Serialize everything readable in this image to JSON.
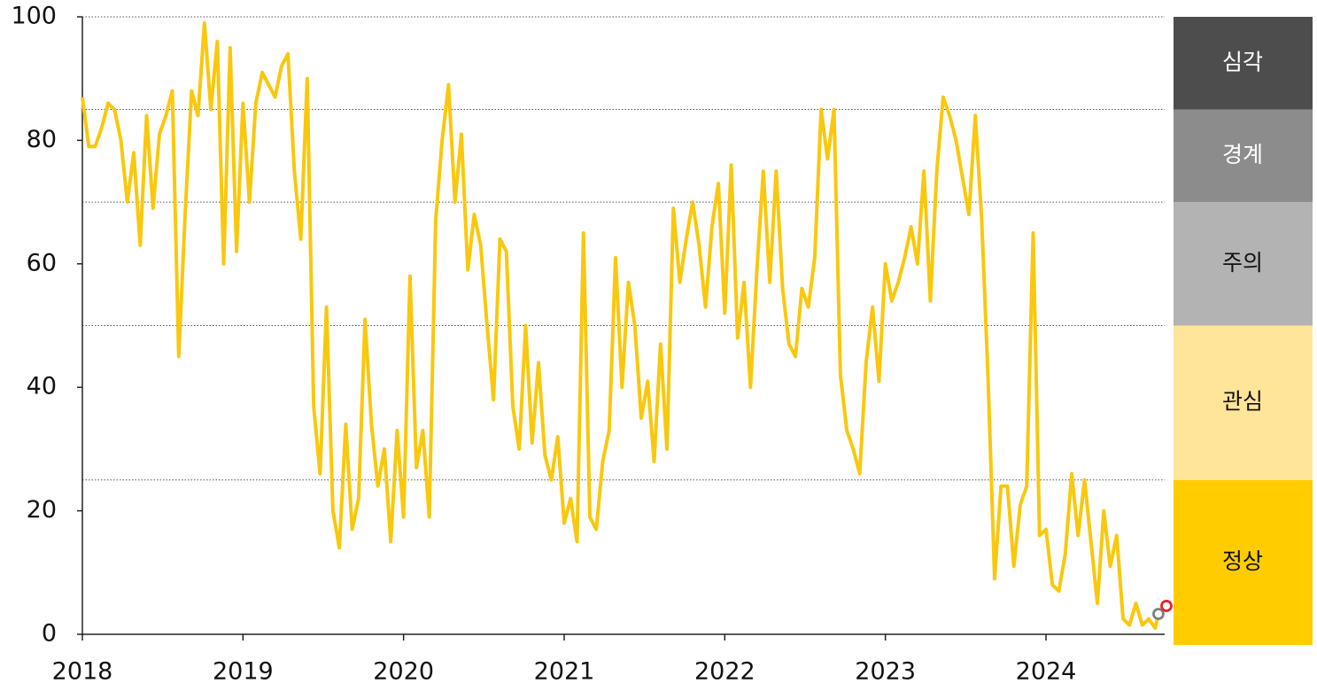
{
  "chart_data": {
    "type": "line",
    "xlim": [
      2018,
      2024.75
    ],
    "xticks": [
      2018,
      2019,
      2020,
      2021,
      2022,
      2023,
      2024
    ],
    "ylim": [
      0,
      100
    ],
    "yticks": [
      0,
      20,
      40,
      60,
      80,
      100
    ],
    "series": [
      {
        "color": "#f9c80e",
        "x": [
          2018,
          2018.04,
          2018.08,
          2018.12,
          2018.16,
          2018.2,
          2018.24,
          2018.28,
          2018.32,
          2018.36,
          2018.4,
          2018.44,
          2018.48,
          2018.52,
          2018.56,
          2018.6,
          2018.64,
          2018.68,
          2018.72,
          2018.76,
          2018.8,
          2018.84,
          2018.88,
          2018.92,
          2018.96,
          2019,
          2019.04,
          2019.08,
          2019.12,
          2019.16,
          2019.2,
          2019.24,
          2019.28,
          2019.32,
          2019.36,
          2019.4,
          2019.44,
          2019.48,
          2019.52,
          2019.56,
          2019.6,
          2019.64,
          2019.68,
          2019.72,
          2019.76,
          2019.8,
          2019.84,
          2019.88,
          2019.92,
          2019.96,
          2020,
          2020.04,
          2020.08,
          2020.12,
          2020.16,
          2020.2,
          2020.24,
          2020.28,
          2020.32,
          2020.36,
          2020.4,
          2020.44,
          2020.48,
          2020.52,
          2020.56,
          2020.6,
          2020.64,
          2020.68,
          2020.72,
          2020.76,
          2020.8,
          2020.84,
          2020.88,
          2020.92,
          2020.96,
          2021,
          2021.04,
          2021.08,
          2021.12,
          2021.16,
          2021.2,
          2021.24,
          2021.28,
          2021.32,
          2021.36,
          2021.4,
          2021.44,
          2021.48,
          2021.52,
          2021.56,
          2021.6,
          2021.64,
          2021.68,
          2021.72,
          2021.76,
          2021.8,
          2021.84,
          2021.88,
          2021.92,
          2021.96,
          2022,
          2022.04,
          2022.08,
          2022.12,
          2022.16,
          2022.2,
          2022.24,
          2022.28,
          2022.32,
          2022.36,
          2022.4,
          2022.44,
          2022.48,
          2022.52,
          2022.56,
          2022.6,
          2022.64,
          2022.68,
          2022.72,
          2022.76,
          2022.8,
          2022.84,
          2022.88,
          2022.92,
          2022.96,
          2023,
          2023.04,
          2023.08,
          2023.12,
          2023.16,
          2023.2,
          2023.24,
          2023.28,
          2023.32,
          2023.36,
          2023.4,
          2023.44,
          2023.48,
          2023.52,
          2023.56,
          2023.6,
          2023.64,
          2023.68,
          2023.72,
          2023.76,
          2023.8,
          2023.84,
          2023.88,
          2023.92,
          2023.96,
          2024,
          2024.04,
          2024.08,
          2024.12,
          2024.16,
          2024.2,
          2024.24,
          2024.28,
          2024.32,
          2024.36,
          2024.4,
          2024.44,
          2024.48,
          2024.52,
          2024.56,
          2024.6,
          2024.64,
          2024.68,
          2024.7
        ],
        "values": [
          87,
          79,
          79,
          82,
          86,
          85,
          80,
          70,
          78,
          63,
          84,
          69,
          81,
          84,
          88,
          45,
          68,
          88,
          84,
          99,
          85,
          96,
          60,
          95,
          62,
          86,
          70,
          86,
          91,
          89,
          87,
          92,
          94,
          75,
          64,
          90,
          37,
          26,
          53,
          20,
          14,
          34,
          17,
          22,
          51,
          34,
          24,
          30,
          15,
          33,
          19,
          58,
          27,
          33,
          19,
          67,
          80,
          89,
          70,
          81,
          59,
          68,
          63,
          50,
          38,
          64,
          62,
          37,
          30,
          50,
          31,
          44,
          29,
          25,
          32,
          18,
          22,
          15,
          65,
          19,
          17,
          28,
          33,
          61,
          40,
          57,
          50,
          35,
          41,
          28,
          47,
          30,
          69,
          57,
          64,
          70,
          63,
          53,
          66,
          73,
          52,
          76,
          48,
          57,
          40,
          59,
          75,
          57,
          75,
          56,
          47,
          45,
          56,
          53,
          61,
          85,
          77,
          85,
          42,
          33,
          30,
          26,
          44,
          53,
          41,
          60,
          54,
          57,
          61,
          66,
          60,
          75,
          54,
          75,
          87,
          84,
          80,
          74,
          68,
          84,
          67,
          41,
          9,
          24,
          24,
          11,
          21,
          24,
          65,
          16,
          17,
          8,
          7,
          13,
          26,
          16,
          25,
          15,
          5,
          20,
          11,
          16,
          2.5,
          1.5,
          5,
          1.5,
          2.5,
          1,
          3.3
        ]
      }
    ],
    "markers": [
      {
        "x": 2024.7,
        "y": 3.3,
        "color": "#7f7f7f"
      },
      {
        "x": 2024.75,
        "y": 4.6,
        "color": "#e3262b"
      }
    ],
    "bands": [
      {
        "label": "정상",
        "from": 0,
        "to": 25,
        "color": "#ffcc00",
        "text_color": "#111111"
      },
      {
        "label": "관심",
        "from": 25,
        "to": 50,
        "color": "#ffe599",
        "text_color": "#111111"
      },
      {
        "label": "주의",
        "from": 50,
        "to": 70,
        "color": "#b3b3b3",
        "text_color": "#111111"
      },
      {
        "label": "경계",
        "from": 70,
        "to": 85,
        "color": "#8c8c8c",
        "text_color": "#ffffff"
      },
      {
        "label": "심각",
        "from": 85,
        "to": 100,
        "color": "#4d4d4d",
        "text_color": "#ffffff"
      }
    ]
  }
}
